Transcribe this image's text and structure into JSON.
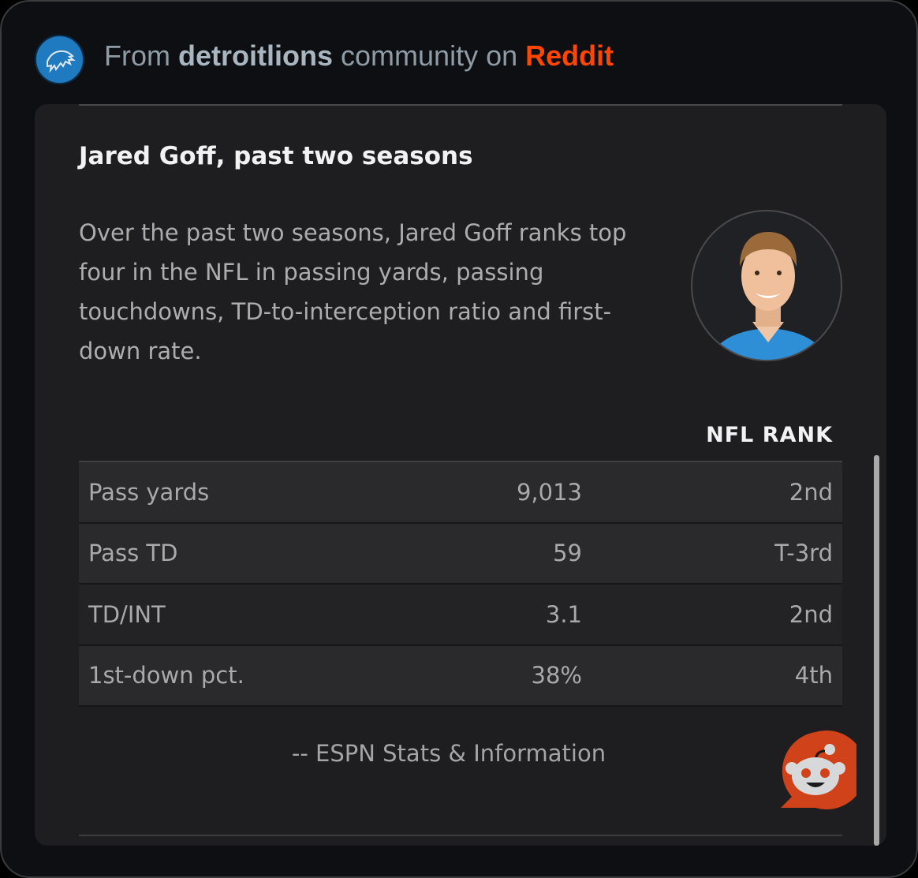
{
  "header": {
    "prefix": "From",
    "community": "detroitlions",
    "middle": "community on",
    "platform": "Reddit"
  },
  "card": {
    "title": "Jared Goff, past two seasons",
    "description": "Over the past two seasons, Jared Goff ranks top four in the NFL in passing yards, passing touchdowns, TD-to-interception ratio and first-down rate.",
    "rank_header": "NFL RANK",
    "rows": [
      {
        "stat": "Pass yards",
        "value": "9,013",
        "rank": "2nd"
      },
      {
        "stat": "Pass TD",
        "value": "59",
        "rank": "T-3rd"
      },
      {
        "stat": "TD/INT",
        "value": "3.1",
        "rank": "2nd"
      },
      {
        "stat": "1st-down pct.",
        "value": "38%",
        "rank": "4th"
      }
    ],
    "source": "-- ESPN Stats & Information"
  },
  "colors": {
    "reddit": "#ff4500",
    "lions_blue": "#1f7ac0"
  }
}
